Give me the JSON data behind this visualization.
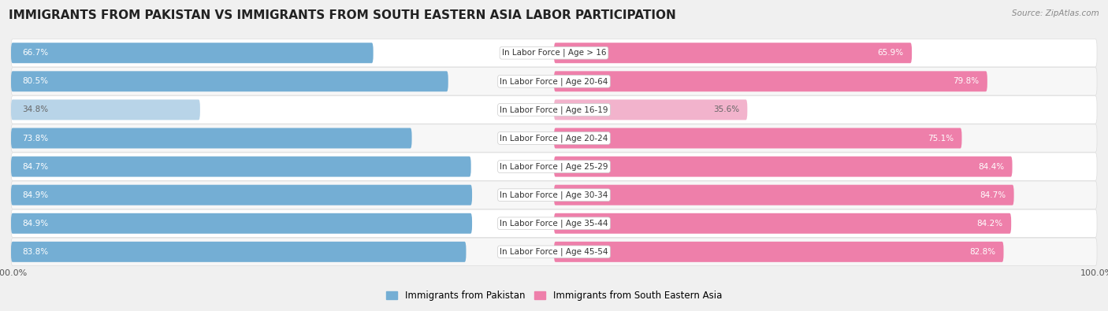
{
  "title": "IMMIGRANTS FROM PAKISTAN VS IMMIGRANTS FROM SOUTH EASTERN ASIA LABOR PARTICIPATION",
  "source": "Source: ZipAtlas.com",
  "categories": [
    "In Labor Force | Age > 16",
    "In Labor Force | Age 20-64",
    "In Labor Force | Age 16-19",
    "In Labor Force | Age 20-24",
    "In Labor Force | Age 25-29",
    "In Labor Force | Age 30-34",
    "In Labor Force | Age 35-44",
    "In Labor Force | Age 45-54"
  ],
  "pakistan_values": [
    66.7,
    80.5,
    34.8,
    73.8,
    84.7,
    84.9,
    84.9,
    83.8
  ],
  "sea_values": [
    65.9,
    79.8,
    35.6,
    75.1,
    84.4,
    84.7,
    84.2,
    82.8
  ],
  "pakistan_color": "#74AED4",
  "pakistan_color_light": "#B8D4E8",
  "sea_color": "#EE7FAA",
  "sea_color_light": "#F2B3CC",
  "bar_height": 0.7,
  "background_color": "#f0f0f0",
  "row_colors": [
    "#ffffff",
    "#f7f7f7"
  ],
  "legend_pakistan": "Immigrants from Pakistan",
  "legend_sea": "Immigrants from South Eastern Asia",
  "title_fontsize": 11,
  "label_fontsize": 7.5,
  "value_fontsize": 7.5,
  "axis_fontsize": 8
}
